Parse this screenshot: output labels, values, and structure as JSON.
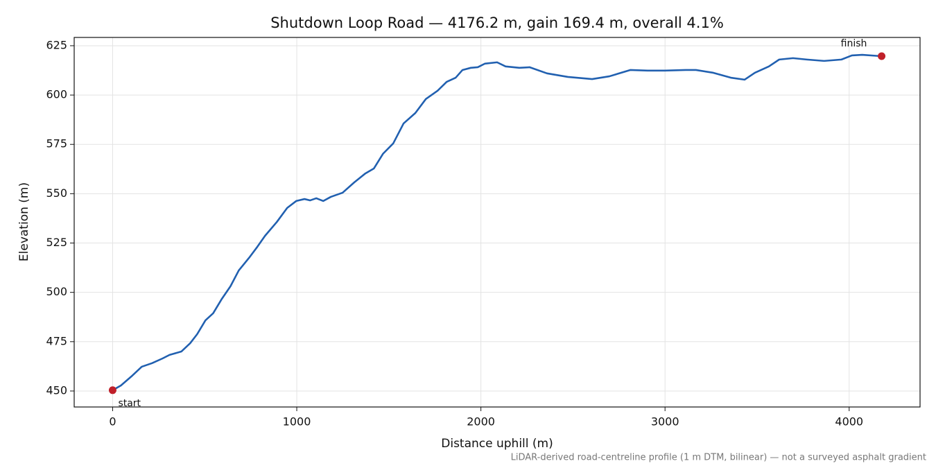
{
  "chart_data": {
    "type": "line",
    "title": "Shutdown Loop Road — 4176.2 m, gain 169.4 m, overall 4.1%",
    "x_label": "Distance uphill (m)",
    "y_label": "Elevation (m)",
    "footnote": "LiDAR-derived road-centreline profile (1 m DTM, bilinear) — not a surveyed asphalt gradient",
    "xlim": [
      -208.8,
      4385
    ],
    "ylim": [
      441.9,
      629.2
    ],
    "xticks": [
      0,
      1000,
      2000,
      3000,
      4000
    ],
    "yticks": [
      450,
      475,
      500,
      525,
      550,
      575,
      600,
      625
    ],
    "grid": true,
    "series": [
      {
        "color": "#2160b0",
        "x": [
          0,
          45,
          102,
          158,
          214,
          271,
          309,
          373,
          421,
          459,
          504,
          546,
          591,
          640,
          685,
          741,
          786,
          828,
          892,
          948,
          997,
          1042,
          1072,
          1106,
          1144,
          1185,
          1249,
          1313,
          1373,
          1419,
          1468,
          1524,
          1580,
          1644,
          1701,
          1765,
          1814,
          1863,
          1900,
          1945,
          1983,
          2021,
          2088,
          2134,
          2209,
          2265,
          2359,
          2472,
          2604,
          2698,
          2811,
          2905,
          3000,
          3112,
          3168,
          3262,
          3357,
          3432,
          3488,
          3564,
          3620,
          3695,
          3770,
          3864,
          3958,
          4015,
          4071,
          4176.2
        ],
        "values": [
          450.4,
          452.8,
          457.4,
          462.3,
          464.1,
          466.5,
          468.3,
          470.0,
          474.2,
          478.8,
          485.8,
          489.4,
          496.4,
          503.1,
          511.1,
          517.5,
          523.1,
          528.7,
          535.7,
          542.8,
          546.3,
          547.3,
          546.6,
          547.7,
          546.3,
          548.4,
          550.5,
          555.8,
          560.3,
          562.8,
          570.2,
          575.5,
          585.6,
          590.9,
          598.0,
          602.2,
          606.7,
          608.8,
          612.7,
          613.8,
          614.1,
          615.9,
          616.6,
          614.5,
          613.8,
          614.1,
          611.0,
          609.2,
          608.1,
          609.5,
          612.7,
          612.4,
          612.4,
          612.7,
          612.7,
          611.3,
          608.8,
          607.8,
          611.3,
          614.5,
          618.0,
          618.7,
          618.0,
          617.3,
          618.0,
          620.1,
          620.4,
          619.7
        ]
      }
    ],
    "markers": [
      {
        "label": "start",
        "x": 0,
        "y": 450.4,
        "color": "#c0202a"
      },
      {
        "label": "finish",
        "x": 4176.2,
        "y": 619.7,
        "color": "#c0202a"
      }
    ]
  }
}
